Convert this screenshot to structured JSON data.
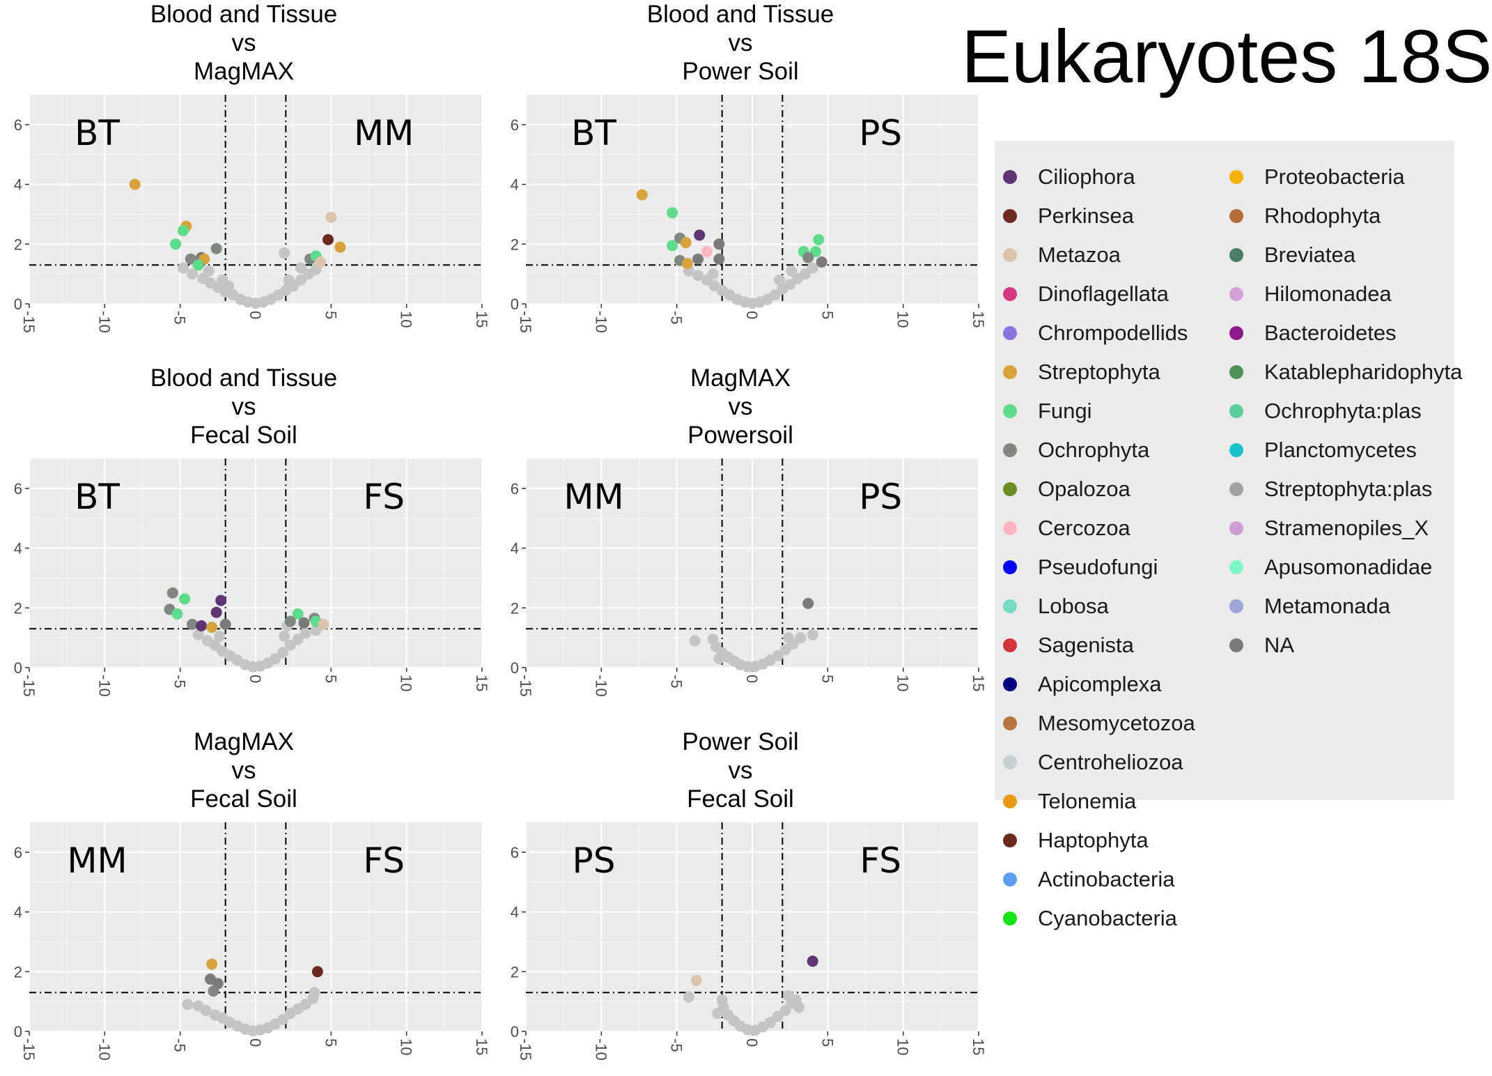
{
  "figure_title": "Eukaryotes 18S",
  "chart_data": [
    {
      "type": "scatter",
      "title_lines": [
        "Blood and Tissue",
        "vs",
        "MagMAX"
      ],
      "left_label": "BT",
      "right_label": "MM",
      "xlim": [
        -15,
        15
      ],
      "ylim": [
        0,
        7
      ],
      "x_ticks": [
        -15,
        -10,
        -5,
        0,
        5,
        10,
        15
      ],
      "y_ticks": [
        0,
        2,
        4,
        6
      ],
      "vlines": [
        -2,
        2
      ],
      "hline": 1.3,
      "points": [
        {
          "x": -8,
          "y": 4.0,
          "taxon": "Streptophyta"
        },
        {
          "x": -4.6,
          "y": 2.6,
          "taxon": "Streptophyta"
        },
        {
          "x": -4.8,
          "y": 2.45,
          "taxon": "Fungi"
        },
        {
          "x": -5.3,
          "y": 2.0,
          "taxon": "Fungi"
        },
        {
          "x": -2.6,
          "y": 1.85,
          "taxon": "Ochrophyta"
        },
        {
          "x": -4.3,
          "y": 1.5,
          "taxon": "Ochrophyta"
        },
        {
          "x": -3.6,
          "y": 1.55,
          "taxon": "NA"
        },
        {
          "x": -3.4,
          "y": 1.5,
          "taxon": "Streptophyta"
        },
        {
          "x": -3.8,
          "y": 1.3,
          "taxon": "Fungi"
        },
        {
          "x": 5.0,
          "y": 2.9,
          "taxon": "Metazoa"
        },
        {
          "x": 4.8,
          "y": 2.15,
          "taxon": "Haptophyta"
        },
        {
          "x": 5.6,
          "y": 1.9,
          "taxon": "Streptophyta"
        },
        {
          "x": 3.6,
          "y": 1.5,
          "taxon": "Ochrophyta"
        },
        {
          "x": 4.0,
          "y": 1.6,
          "taxon": "Fungi"
        },
        {
          "x": 4.3,
          "y": 1.4,
          "taxon": "Metazoa"
        }
      ],
      "ns_points": [
        {
          "x": -4.8,
          "y": 1.2
        },
        {
          "x": -4.2,
          "y": 1.0
        },
        {
          "x": -3.5,
          "y": 0.85
        },
        {
          "x": -3.0,
          "y": 0.7
        },
        {
          "x": -2.5,
          "y": 0.55
        },
        {
          "x": -2.0,
          "y": 0.4
        },
        {
          "x": -1.5,
          "y": 0.3
        },
        {
          "x": -1.0,
          "y": 0.15
        },
        {
          "x": -0.5,
          "y": 0.06
        },
        {
          "x": 0.0,
          "y": 0.02
        },
        {
          "x": 0.5,
          "y": 0.06
        },
        {
          "x": 1.0,
          "y": 0.15
        },
        {
          "x": 1.5,
          "y": 0.3
        },
        {
          "x": 2.0,
          "y": 0.45
        },
        {
          "x": 2.5,
          "y": 0.6
        },
        {
          "x": 3.0,
          "y": 0.8
        },
        {
          "x": 3.5,
          "y": 1.0
        },
        {
          "x": 4.0,
          "y": 1.15
        },
        {
          "x": 2.2,
          "y": 0.8
        },
        {
          "x": -2.2,
          "y": 0.8
        },
        {
          "x": 1.9,
          "y": 1.7
        },
        {
          "x": -3.1,
          "y": 1.1
        },
        {
          "x": 3.0,
          "y": 1.2
        },
        {
          "x": -1.8,
          "y": 0.6
        }
      ]
    },
    {
      "type": "scatter",
      "title_lines": [
        "Blood and Tissue",
        "vs",
        "Power Soil"
      ],
      "left_label": "BT",
      "right_label": "PS",
      "xlim": [
        -15,
        15
      ],
      "ylim": [
        0,
        7
      ],
      "x_ticks": [
        -15,
        -10,
        -5,
        0,
        5,
        10,
        15
      ],
      "y_ticks": [
        0,
        2,
        4,
        6
      ],
      "vlines": [
        -2,
        2
      ],
      "hline": 1.3,
      "points": [
        {
          "x": -7.3,
          "y": 3.65,
          "taxon": "Streptophyta"
        },
        {
          "x": -5.3,
          "y": 3.05,
          "taxon": "Fungi"
        },
        {
          "x": -3.5,
          "y": 2.3,
          "taxon": "Ciliophora"
        },
        {
          "x": -4.8,
          "y": 2.2,
          "taxon": "Ochrophyta"
        },
        {
          "x": -4.4,
          "y": 2.05,
          "taxon": "Streptophyta"
        },
        {
          "x": -2.2,
          "y": 2.0,
          "taxon": "NA"
        },
        {
          "x": -5.3,
          "y": 1.95,
          "taxon": "Fungi"
        },
        {
          "x": -3.0,
          "y": 1.75,
          "taxon": "Cercozoa"
        },
        {
          "x": -4.8,
          "y": 1.45,
          "taxon": "Ochrophyta"
        },
        {
          "x": -4.3,
          "y": 1.35,
          "taxon": "Streptophyta"
        },
        {
          "x": -3.6,
          "y": 1.5,
          "taxon": "NA"
        },
        {
          "x": -2.2,
          "y": 1.5,
          "taxon": "NA"
        },
        {
          "x": 3.4,
          "y": 1.75,
          "taxon": "Fungi"
        },
        {
          "x": 4.4,
          "y": 2.15,
          "taxon": "Fungi"
        },
        {
          "x": 4.2,
          "y": 1.75,
          "taxon": "Fungi"
        },
        {
          "x": 3.7,
          "y": 1.55,
          "taxon": "Ochrophyta"
        },
        {
          "x": 4.6,
          "y": 1.4,
          "taxon": "NA"
        }
      ],
      "ns_points": [
        {
          "x": -4.2,
          "y": 1.1
        },
        {
          "x": -3.6,
          "y": 0.95
        },
        {
          "x": -3.0,
          "y": 0.8
        },
        {
          "x": -2.5,
          "y": 0.6
        },
        {
          "x": -2.0,
          "y": 0.45
        },
        {
          "x": -1.5,
          "y": 0.3
        },
        {
          "x": -1.0,
          "y": 0.15
        },
        {
          "x": -0.5,
          "y": 0.06
        },
        {
          "x": 0.0,
          "y": 0.02
        },
        {
          "x": 0.5,
          "y": 0.06
        },
        {
          "x": 1.0,
          "y": 0.15
        },
        {
          "x": 1.5,
          "y": 0.3
        },
        {
          "x": 2.0,
          "y": 0.5
        },
        {
          "x": 2.5,
          "y": 0.65
        },
        {
          "x": 3.0,
          "y": 0.85
        },
        {
          "x": 3.5,
          "y": 1.0
        },
        {
          "x": 4.0,
          "y": 1.2
        },
        {
          "x": -2.6,
          "y": 1.0
        },
        {
          "x": 2.6,
          "y": 1.1
        },
        {
          "x": 1.8,
          "y": 0.8
        }
      ]
    },
    {
      "type": "scatter",
      "title_lines": [
        "Blood and Tissue",
        "vs",
        "Fecal Soil"
      ],
      "left_label": "BT",
      "right_label": "FS",
      "xlim": [
        -15,
        15
      ],
      "ylim": [
        0,
        7
      ],
      "x_ticks": [
        -15,
        -10,
        -5,
        0,
        5,
        10,
        15
      ],
      "y_ticks": [
        0,
        2,
        4,
        6
      ],
      "vlines": [
        -2,
        2
      ],
      "hline": 1.3,
      "points": [
        {
          "x": -5.5,
          "y": 2.5,
          "taxon": "Ochrophyta"
        },
        {
          "x": -4.7,
          "y": 2.3,
          "taxon": "Fungi"
        },
        {
          "x": -5.7,
          "y": 1.95,
          "taxon": "Ochrophyta"
        },
        {
          "x": -5.2,
          "y": 1.8,
          "taxon": "Fungi"
        },
        {
          "x": -2.3,
          "y": 2.25,
          "taxon": "Ciliophora"
        },
        {
          "x": -2.6,
          "y": 1.85,
          "taxon": "Ciliophora"
        },
        {
          "x": -4.2,
          "y": 1.45,
          "taxon": "Ochrophyta"
        },
        {
          "x": -3.6,
          "y": 1.4,
          "taxon": "Ciliophora"
        },
        {
          "x": -2.9,
          "y": 1.35,
          "taxon": "Streptophyta"
        },
        {
          "x": -2.0,
          "y": 1.45,
          "taxon": "NA"
        },
        {
          "x": 2.8,
          "y": 1.8,
          "taxon": "Fungi"
        },
        {
          "x": 2.3,
          "y": 1.55,
          "taxon": "Ochrophyta"
        },
        {
          "x": 3.2,
          "y": 1.5,
          "taxon": "NA"
        },
        {
          "x": 3.9,
          "y": 1.65,
          "taxon": "Ochrophyta"
        },
        {
          "x": 4.0,
          "y": 1.55,
          "taxon": "Fungi"
        },
        {
          "x": 4.5,
          "y": 1.45,
          "taxon": "Metazoa"
        }
      ],
      "ns_points": [
        {
          "x": -3.8,
          "y": 1.1
        },
        {
          "x": -3.2,
          "y": 0.9
        },
        {
          "x": -2.7,
          "y": 0.75
        },
        {
          "x": -2.2,
          "y": 0.55
        },
        {
          "x": -1.7,
          "y": 0.4
        },
        {
          "x": -1.2,
          "y": 0.25
        },
        {
          "x": -0.7,
          "y": 0.1
        },
        {
          "x": -0.2,
          "y": 0.03
        },
        {
          "x": 0.3,
          "y": 0.05
        },
        {
          "x": 0.8,
          "y": 0.15
        },
        {
          "x": 1.3,
          "y": 0.3
        },
        {
          "x": 1.8,
          "y": 0.5
        },
        {
          "x": 2.3,
          "y": 0.75
        },
        {
          "x": 2.8,
          "y": 0.95
        },
        {
          "x": 3.3,
          "y": 1.15
        },
        {
          "x": 4.0,
          "y": 1.25
        },
        {
          "x": 1.9,
          "y": 1.05
        },
        {
          "x": -2.4,
          "y": 1.05
        },
        {
          "x": 2.1,
          "y": 1.4
        }
      ]
    },
    {
      "type": "scatter",
      "title_lines": [
        "MagMAX",
        "vs",
        "Powersoil"
      ],
      "left_label": "MM",
      "right_label": "PS",
      "xlim": [
        -15,
        15
      ],
      "ylim": [
        0,
        7
      ],
      "x_ticks": [
        -15,
        -10,
        -5,
        0,
        5,
        10,
        15
      ],
      "y_ticks": [
        0,
        2,
        4,
        6
      ],
      "vlines": [
        -2,
        2
      ],
      "hline": 1.3,
      "points": [
        {
          "x": 3.7,
          "y": 2.15,
          "taxon": "NA"
        }
      ],
      "ns_points": [
        {
          "x": -3.8,
          "y": 0.9
        },
        {
          "x": -2.6,
          "y": 0.95
        },
        {
          "x": -2.4,
          "y": 0.7
        },
        {
          "x": -2.0,
          "y": 0.5
        },
        {
          "x": -1.6,
          "y": 0.35
        },
        {
          "x": -1.2,
          "y": 0.22
        },
        {
          "x": -0.8,
          "y": 0.1
        },
        {
          "x": -0.3,
          "y": 0.03
        },
        {
          "x": 0.2,
          "y": 0.04
        },
        {
          "x": 0.7,
          "y": 0.12
        },
        {
          "x": 1.2,
          "y": 0.25
        },
        {
          "x": 1.7,
          "y": 0.4
        },
        {
          "x": 2.2,
          "y": 0.6
        },
        {
          "x": 2.7,
          "y": 0.8
        },
        {
          "x": 3.2,
          "y": 1.0
        },
        {
          "x": 4.0,
          "y": 1.1
        },
        {
          "x": 2.4,
          "y": 1.0
        },
        {
          "x": -2.2,
          "y": 0.3
        }
      ]
    },
    {
      "type": "scatter",
      "title_lines": [
        "MagMAX",
        "vs",
        "Fecal Soil"
      ],
      "left_label": "MM",
      "right_label": "FS",
      "xlim": [
        -15,
        15
      ],
      "ylim": [
        0,
        7
      ],
      "x_ticks": [
        -15,
        -10,
        -5,
        0,
        5,
        10,
        15
      ],
      "y_ticks": [
        0,
        2,
        4,
        6
      ],
      "vlines": [
        -2,
        2
      ],
      "hline": 1.3,
      "points": [
        {
          "x": -2.9,
          "y": 2.25,
          "taxon": "Streptophyta"
        },
        {
          "x": -3.0,
          "y": 1.75,
          "taxon": "NA"
        },
        {
          "x": -2.5,
          "y": 1.6,
          "taxon": "NA"
        },
        {
          "x": -2.8,
          "y": 1.35,
          "taxon": "Ochrophyta"
        },
        {
          "x": 4.1,
          "y": 2.0,
          "taxon": "Haptophyta"
        }
      ],
      "ns_points": [
        {
          "x": -4.5,
          "y": 0.9
        },
        {
          "x": -3.8,
          "y": 0.85
        },
        {
          "x": -3.3,
          "y": 0.7
        },
        {
          "x": -2.7,
          "y": 0.55
        },
        {
          "x": -2.2,
          "y": 0.45
        },
        {
          "x": -1.7,
          "y": 0.3
        },
        {
          "x": -1.2,
          "y": 0.18
        },
        {
          "x": -0.7,
          "y": 0.08
        },
        {
          "x": -0.2,
          "y": 0.02
        },
        {
          "x": 0.3,
          "y": 0.05
        },
        {
          "x": 0.8,
          "y": 0.12
        },
        {
          "x": 1.3,
          "y": 0.25
        },
        {
          "x": 1.8,
          "y": 0.4
        },
        {
          "x": 2.3,
          "y": 0.6
        },
        {
          "x": 2.8,
          "y": 0.75
        },
        {
          "x": 3.3,
          "y": 0.9
        },
        {
          "x": 3.8,
          "y": 1.1
        },
        {
          "x": 3.9,
          "y": 1.3
        }
      ]
    },
    {
      "type": "scatter",
      "title_lines": [
        "Power Soil",
        "vs",
        "Fecal Soil"
      ],
      "left_label": "PS",
      "right_label": "FS",
      "xlim": [
        -15,
        15
      ],
      "ylim": [
        0,
        7
      ],
      "x_ticks": [
        -15,
        -10,
        -5,
        0,
        5,
        10,
        15
      ],
      "y_ticks": [
        0,
        2,
        4,
        6
      ],
      "vlines": [
        -2,
        2
      ],
      "hline": 1.3,
      "points": [
        {
          "x": -3.7,
          "y": 1.7,
          "taxon": "Metazoa"
        },
        {
          "x": 4.0,
          "y": 2.35,
          "taxon": "Ciliophora"
        }
      ],
      "ns_points": [
        {
          "x": -4.2,
          "y": 1.15
        },
        {
          "x": -2.0,
          "y": 1.05
        },
        {
          "x": -1.9,
          "y": 0.8
        },
        {
          "x": -1.6,
          "y": 0.55
        },
        {
          "x": -1.2,
          "y": 0.35
        },
        {
          "x": -0.8,
          "y": 0.18
        },
        {
          "x": -0.3,
          "y": 0.06
        },
        {
          "x": 0.2,
          "y": 0.04
        },
        {
          "x": 0.7,
          "y": 0.15
        },
        {
          "x": 1.2,
          "y": 0.3
        },
        {
          "x": 1.7,
          "y": 0.5
        },
        {
          "x": 2.2,
          "y": 0.7
        },
        {
          "x": 2.6,
          "y": 0.95
        },
        {
          "x": 2.9,
          "y": 1.05
        },
        {
          "x": 3.1,
          "y": 0.8
        },
        {
          "x": 2.4,
          "y": 1.2
        },
        {
          "x": -2.3,
          "y": 0.6
        }
      ]
    }
  ],
  "legend": {
    "col1": [
      {
        "name": "Ciliophora",
        "color": "#5e3473"
      },
      {
        "name": "Perkinsea",
        "color": "#6b2a22"
      },
      {
        "name": "Metazoa",
        "color": "#dcc3ae"
      },
      {
        "name": "Dinoflagellata",
        "color": "#d63a82"
      },
      {
        "name": "Chrompodellids",
        "color": "#8a75e0"
      },
      {
        "name": "Streptophyta",
        "color": "#d8a33c"
      },
      {
        "name": "Fungi",
        "color": "#5edb8b"
      },
      {
        "name": "Ochrophyta",
        "color": "#7f8783"
      },
      {
        "name": "Opalozoa",
        "color": "#6b8e23"
      },
      {
        "name": "Cercozoa",
        "color": "#ffb6c1"
      },
      {
        "name": "Pseudofungi",
        "color": "#0000ff"
      },
      {
        "name": "Lobosa",
        "color": "#76dcc1"
      },
      {
        "name": "Sagenista",
        "color": "#d2343d"
      },
      {
        "name": "Apicomplexa",
        "color": "#000080"
      },
      {
        "name": "Mesomycetozoa",
        "color": "#b8773d"
      },
      {
        "name": "Centroheliozoa",
        "color": "#c6d0ce"
      },
      {
        "name": "Telonemia",
        "color": "#e89a14"
      },
      {
        "name": "Haptophyta",
        "color": "#6a2a20"
      },
      {
        "name": "Actinobacteria",
        "color": "#5e9df0"
      },
      {
        "name": "Cyanobacteria",
        "color": "#16e316"
      }
    ],
    "col2": [
      {
        "name": "Proteobacteria",
        "color": "#f5b10a"
      },
      {
        "name": "Rhodophyta",
        "color": "#b46c3b"
      },
      {
        "name": "Breviatea",
        "color": "#4a7d6a"
      },
      {
        "name": "Hilomonadea",
        "color": "#d3a0d7"
      },
      {
        "name": "Bacteroidetes",
        "color": "#8b1a8b"
      },
      {
        "name": "Katablepharidophyta",
        "color": "#4f8f5a"
      },
      {
        "name": "Ochrophyta:plas",
        "color": "#5ccc99"
      },
      {
        "name": "Planctomycetes",
        "color": "#17c2c8"
      },
      {
        "name": "Streptophyta:plas",
        "color": "#a2a2a2"
      },
      {
        "name": "Stramenopiles_X",
        "color": "#ce9ed0"
      },
      {
        "name": "Apusomonadidae",
        "color": "#7ff6c8"
      },
      {
        "name": "Metamonada",
        "color": "#9ea5d9"
      },
      {
        "name": "NA",
        "color": "#7a7a7a"
      }
    ]
  },
  "colors": {
    "panel_bg": "#ebebeb",
    "grid": "#ffffff",
    "nonsignificant": "#c5c5c5",
    "tick_text": "#4d4d4d"
  }
}
